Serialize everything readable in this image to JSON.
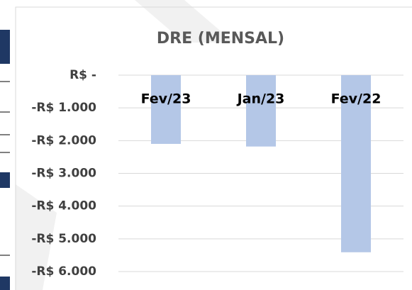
{
  "chart_data": {
    "type": "bar",
    "title": "DRE (MENSAL)",
    "categories": [
      "Fev/23",
      "Jan/23",
      "Fev/22"
    ],
    "values": [
      -2100,
      -2180,
      -5410
    ],
    "color": "#b4c7e7",
    "ylim": [
      -6000,
      0
    ],
    "yticks": [
      {
        "value": 0,
        "label": "R$ -"
      },
      {
        "value": -1000,
        "label": "-R$ 1.000"
      },
      {
        "value": -2000,
        "label": "-R$ 2.000"
      },
      {
        "value": -3000,
        "label": "-R$ 3.000"
      },
      {
        "value": -4000,
        "label": "-R$ 4.000"
      },
      {
        "value": -5000,
        "label": "-R$ 5.000"
      },
      {
        "value": -6000,
        "label": "-R$ 6.000"
      }
    ],
    "grid": true
  }
}
